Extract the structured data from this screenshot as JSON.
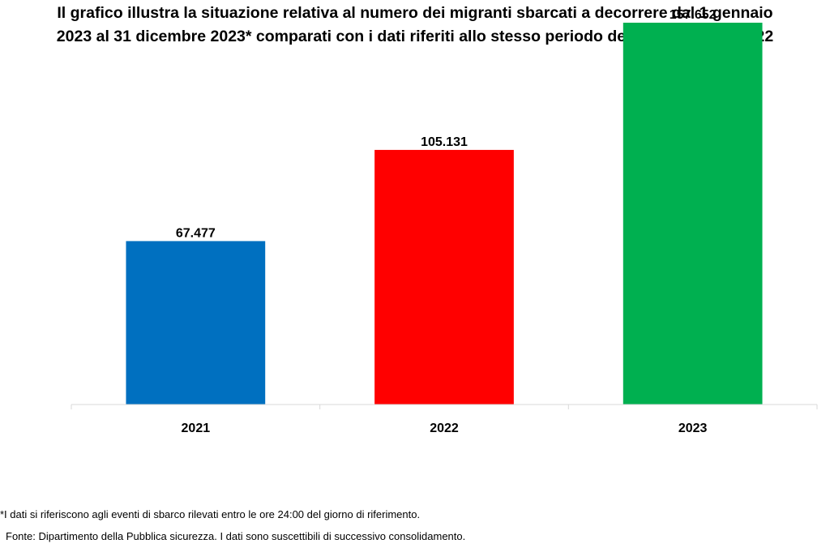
{
  "header": {
    "title": "Il grafico illustra la situazione relativa al numero dei migranti sbarcati a decorrere dal 1 gennaio 2023 al 31 dicembre 2023* comparati con i dati riferiti allo stesso periodo degli anni 2021 e 2022"
  },
  "chart_data": {
    "type": "bar",
    "categories": [
      "2021",
      "2022",
      "2023"
    ],
    "values": [
      67477,
      105131,
      157652
    ],
    "value_labels": [
      "67.477",
      "105.131",
      "157.652"
    ],
    "colors": [
      "#0070c0",
      "#ff0000",
      "#00b050"
    ],
    "ylim": [
      0,
      160000
    ],
    "grid": false,
    "legend": "none"
  },
  "footer": {
    "note": "*I dati si riferiscono agli eventi di sbarco rilevati entro le ore 24:00 del giorno di riferimento.",
    "source": "Fonte: Dipartimento della Pubblica sicurezza. I dati sono suscettibili di successivo consolidamento."
  }
}
